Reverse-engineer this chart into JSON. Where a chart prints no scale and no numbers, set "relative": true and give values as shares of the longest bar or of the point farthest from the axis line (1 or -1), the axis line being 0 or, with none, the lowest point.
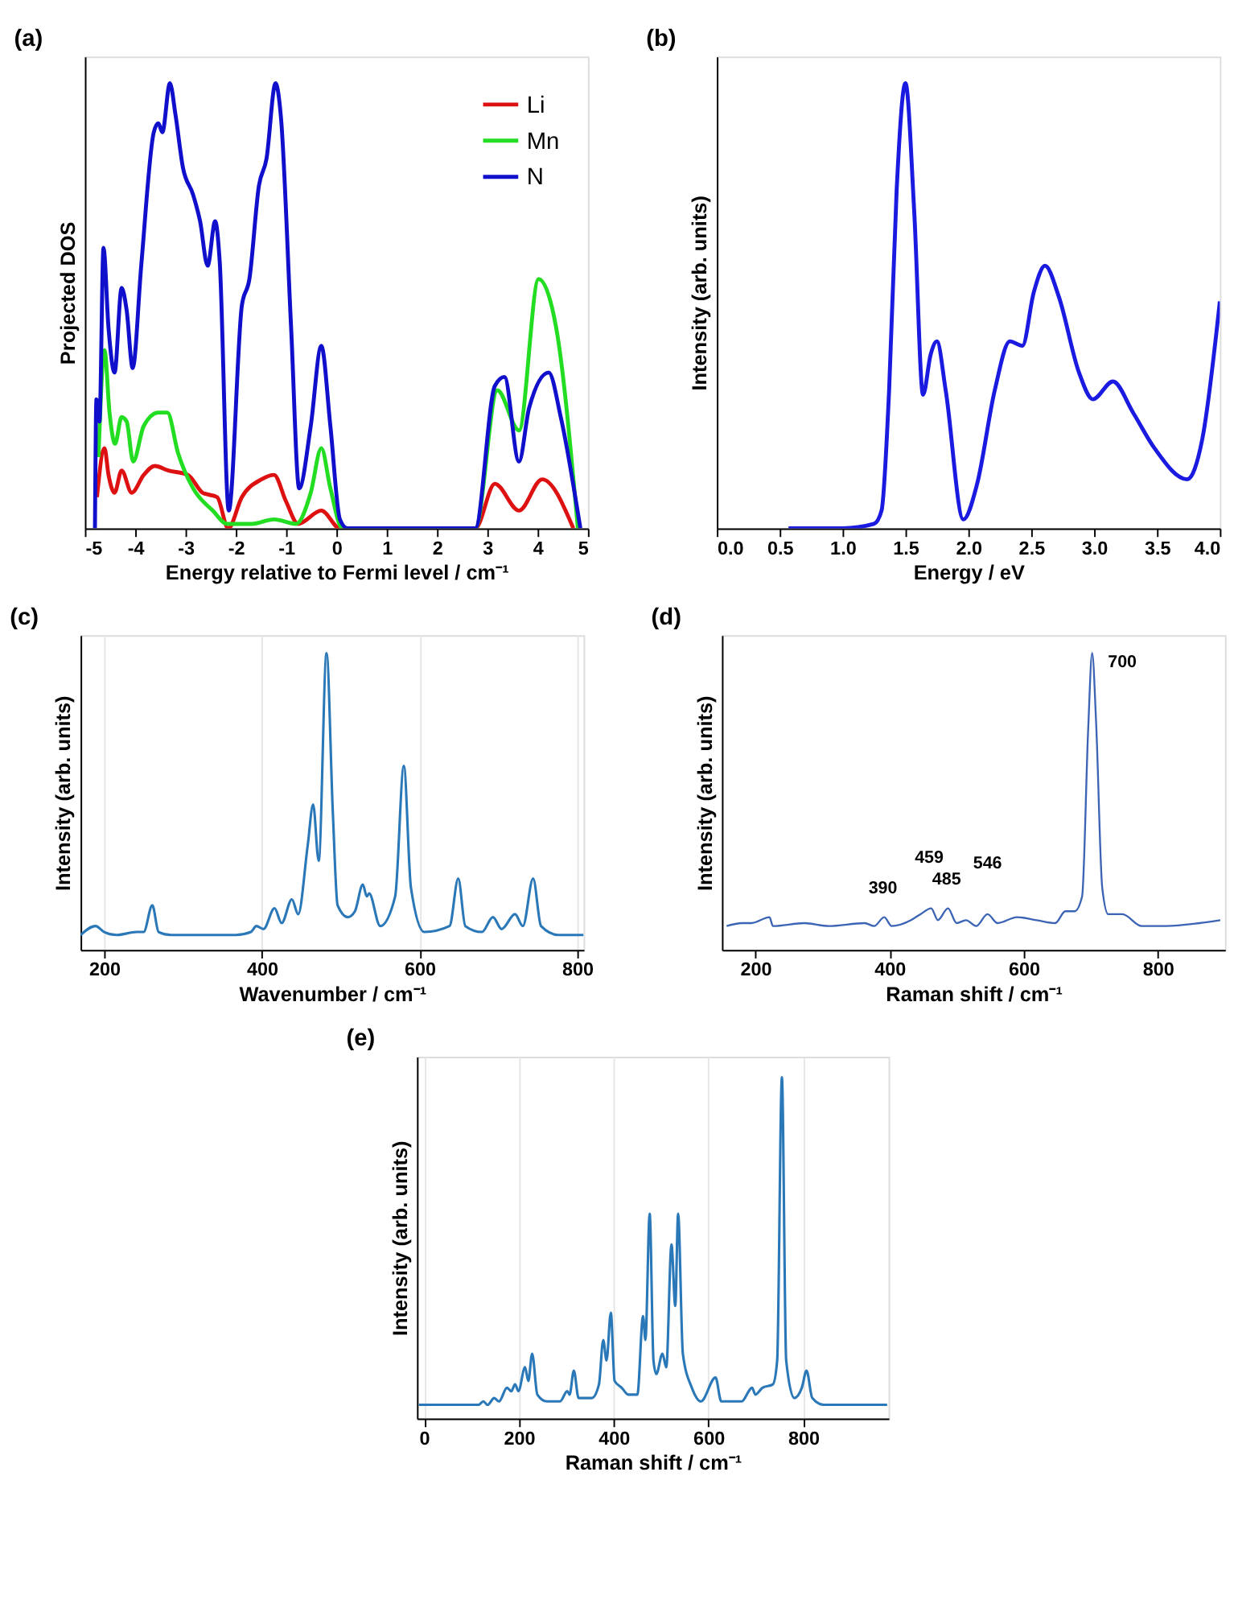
{
  "chart_data": [
    {
      "type": "line",
      "title": "(a)",
      "xlabel": "Energy relative to Fermi level / cm⁻¹",
      "ylabel": "Projected DOS",
      "relative": true,
      "tick_labels": "x",
      "grid": false,
      "legend": "top right",
      "xlim": [
        -5,
        5
      ],
      "xticks": [
        -5,
        -4,
        -3,
        -2,
        -1,
        0,
        1,
        2,
        3,
        4,
        5
      ],
      "series": [
        {
          "name": "Li",
          "color": "#dd1111",
          "x": [
            -4.76,
            -4.61,
            -4.53,
            -4.41,
            -4.27,
            -4.07,
            -3.83,
            -3.61,
            -3.34,
            -2.95,
            -2.66,
            -2.37,
            -2.15,
            -1.88,
            -1.49,
            -1.24,
            -1.0,
            -0.76,
            -0.3,
            0.07,
            2.76,
            3.15,
            3.63,
            4.09,
            4.71
          ],
          "values": [
            0.07,
            0.18,
            0.12,
            0.08,
            0.13,
            0.08,
            0.12,
            0.14,
            0.13,
            0.12,
            0.08,
            0.07,
            0,
            0.07,
            0.11,
            0.12,
            0.06,
            0.01,
            0.04,
            0,
            0,
            0.1,
            0.04,
            0.11,
            0
          ]
        },
        {
          "name": "Mn",
          "color": "#22dd22",
          "x": [
            -4.73,
            -4.61,
            -4.51,
            -4.4,
            -4.27,
            -4.17,
            -4.04,
            -3.83,
            -3.54,
            -3.36,
            -3.15,
            -2.85,
            -2.46,
            -2.17,
            -1.68,
            -1.24,
            -0.8,
            -0.51,
            -0.3,
            -0.12,
            0.12,
            2.76,
            3.2,
            3.63,
            4.02,
            4.37,
            4.8
          ],
          "values": [
            0.16,
            0.4,
            0.26,
            0.19,
            0.25,
            0.24,
            0.15,
            0.23,
            0.26,
            0.26,
            0.17,
            0.09,
            0.04,
            0.01,
            0.01,
            0.02,
            0.01,
            0.08,
            0.18,
            0.09,
            0,
            0,
            0.31,
            0.22,
            0.56,
            0.45,
            0
          ]
        },
        {
          "name": "N",
          "color": "#1010cc",
          "x": [
            -4.8,
            -4.77,
            -4.71,
            -4.63,
            -4.53,
            -4.41,
            -4.27,
            -4.17,
            -4.05,
            -3.88,
            -3.63,
            -3.54,
            -3.46,
            -3.31,
            -3.2,
            -3.05,
            -2.85,
            -2.71,
            -2.56,
            -2.41,
            -2.32,
            -2.14,
            -1.88,
            -1.73,
            -1.54,
            -1.39,
            -1.21,
            -1.1,
            -0.9,
            -0.74,
            -0.51,
            -0.3,
            -0.12,
            0.07,
            0.22,
            2.76,
            3.15,
            3.34,
            3.63,
            3.83,
            4.22,
            4.46,
            4.85
          ],
          "values": [
            0,
            0.29,
            0.24,
            0.63,
            0.45,
            0.35,
            0.54,
            0.49,
            0.36,
            0.59,
            0.89,
            0.91,
            0.89,
            1.0,
            0.93,
            0.81,
            0.75,
            0.69,
            0.59,
            0.69,
            0.6,
            0.04,
            0.5,
            0.56,
            0.77,
            0.83,
            1.0,
            0.92,
            0.45,
            0.09,
            0.23,
            0.41,
            0.23,
            0.02,
            0,
            0,
            0.32,
            0.34,
            0.15,
            0.27,
            0.35,
            0.25,
            0
          ]
        }
      ]
    },
    {
      "type": "line",
      "title": "(b)",
      "xlabel": "Energy / eV",
      "ylabel": "Intensity (arb. units)",
      "relative": true,
      "tick_labels": "x",
      "grid": false,
      "xlim": [
        0,
        4
      ],
      "xticks": [
        {
          "value": 0,
          "label": "0.0"
        },
        0.5,
        {
          "value": 1,
          "label": "1.0"
        },
        1.5,
        {
          "value": 2,
          "label": "2.0"
        },
        2.5,
        {
          "value": 3,
          "label": "3.0"
        },
        3.5,
        {
          "value": 4,
          "label": "4.0"
        }
      ],
      "series": [
        {
          "color": "#1a1ae0",
          "x": [
            0.57,
            1.0,
            1.25,
            1.31,
            1.37,
            1.43,
            1.5,
            1.57,
            1.64,
            1.7,
            1.75,
            1.82,
            1.96,
            2.07,
            2.21,
            2.33,
            2.43,
            2.52,
            2.61,
            2.72,
            2.88,
            2.99,
            3.15,
            3.31,
            3.48,
            3.74,
            3.86,
            4.0
          ],
          "values": [
            0,
            0,
            0.01,
            0.04,
            0.31,
            0.76,
            1.0,
            0.71,
            0.3,
            0.39,
            0.42,
            0.31,
            0.02,
            0.1,
            0.31,
            0.42,
            0.41,
            0.53,
            0.59,
            0.52,
            0.35,
            0.29,
            0.33,
            0.26,
            0.18,
            0.11,
            0.2,
            0.51
          ]
        }
      ]
    },
    {
      "type": "line",
      "title": "(c)",
      "xlabel": "Wavenumber / cm⁻¹",
      "ylabel": "Intensity (arb. units)",
      "relative": true,
      "tick_labels": "x",
      "grid": "x",
      "xlim": [
        170,
        808
      ],
      "xticks": [
        200,
        400,
        600,
        800
      ],
      "series": [
        {
          "color": "#2a78b8",
          "x": [
            170,
            189,
            200,
            216,
            241,
            250,
            261,
            269,
            285,
            367,
            386,
            393,
            402,
            416,
            425,
            438,
            446,
            458,
            465,
            472,
            482,
            490,
            496,
            509,
            518,
            528,
            533,
            536,
            550,
            569,
            580,
            589,
            606,
            638,
            649,
            658,
            679,
            693,
            704,
            721,
            731,
            744,
            754,
            776,
            808
          ],
          "values": [
            0.05,
            0.08,
            0.06,
            0.05,
            0.06,
            0.06,
            0.15,
            0.06,
            0.05,
            0.05,
            0.06,
            0.08,
            0.07,
            0.14,
            0.09,
            0.17,
            0.12,
            0.35,
            0.49,
            0.3,
            1.0,
            0.46,
            0.15,
            0.11,
            0.13,
            0.22,
            0.18,
            0.19,
            0.08,
            0.18,
            0.62,
            0.21,
            0.06,
            0.08,
            0.24,
            0.08,
            0.06,
            0.11,
            0.07,
            0.12,
            0.08,
            0.24,
            0.08,
            0.05,
            0.05
          ]
        }
      ]
    },
    {
      "type": "line",
      "title": "(d)",
      "xlabel": "Raman shift / cm⁻¹",
      "ylabel": "Intensity (arb. units)",
      "relative": true,
      "tick_labels": "x",
      "grid": false,
      "xlim": [
        150,
        900
      ],
      "xticks": [
        200,
        400,
        600,
        800
      ],
      "series": [
        {
          "color": "#3c64b4",
          "x": [
            157,
            180,
            194,
            221,
            226,
            273,
            309,
            363,
            377,
            392,
            403,
            432,
            446,
            462,
            472,
            487,
            500,
            514,
            529,
            546,
            561,
            590,
            619,
            647,
            662,
            676,
            687,
            696,
            702,
            708,
            717,
            726,
            747,
            776,
            812,
            862,
            893
          ],
          "values": [
            0.08,
            0.09,
            0.09,
            0.11,
            0.08,
            0.09,
            0.08,
            0.09,
            0.08,
            0.11,
            0.08,
            0.1,
            0.12,
            0.14,
            0.1,
            0.14,
            0.09,
            0.1,
            0.08,
            0.12,
            0.09,
            0.11,
            0.1,
            0.09,
            0.13,
            0.13,
            0.18,
            0.74,
            1.0,
            0.76,
            0.21,
            0.12,
            0.12,
            0.08,
            0.08,
            0.09,
            0.1
          ]
        }
      ],
      "annotations": [
        {
          "text": "390",
          "x": 390,
          "y": 0.11
        },
        {
          "text": "459",
          "x": 459,
          "y": 0.14
        },
        {
          "text": "485",
          "x": 485,
          "y": 0.14
        },
        {
          "text": "546",
          "x": 546,
          "y": 0.12
        },
        {
          "text": "700",
          "x": 702,
          "y": 1.0
        }
      ]
    },
    {
      "type": "line",
      "title": "(e)",
      "xlabel": "Raman shift / cm⁻¹",
      "ylabel": "Intensity (arb. units)",
      "relative": true,
      "tick_labels": "x",
      "grid": "x",
      "xlim": [
        -15,
        980
      ],
      "xticks": [
        0,
        200,
        400,
        600,
        800
      ],
      "series": [
        {
          "color": "#2a78b8",
          "x": [
            -11,
            115,
            125,
            134,
            148,
            158,
            175,
            184,
            192,
            199,
            213,
            220,
            228,
            239,
            259,
            287,
            302,
            307,
            316,
            326,
            354,
            369,
            378,
            385,
            394,
            402,
            417,
            431,
            450,
            462,
            467,
            476,
            484,
            490,
            503,
            511,
            522,
            530,
            536,
            546,
            565,
            584,
            615,
            627,
            670,
            692,
            699,
            714,
            736,
            745,
            755,
            764,
            781,
            797,
            807,
            819,
            843,
            977
          ],
          "values": [
            0.04,
            0.04,
            0.05,
            0.04,
            0.06,
            0.05,
            0.09,
            0.08,
            0.1,
            0.08,
            0.15,
            0.11,
            0.19,
            0.07,
            0.05,
            0.05,
            0.08,
            0.07,
            0.14,
            0.06,
            0.06,
            0.1,
            0.23,
            0.17,
            0.31,
            0.11,
            0.09,
            0.07,
            0.07,
            0.3,
            0.23,
            0.6,
            0.17,
            0.13,
            0.19,
            0.15,
            0.51,
            0.33,
            0.6,
            0.19,
            0.09,
            0.05,
            0.12,
            0.05,
            0.05,
            0.09,
            0.07,
            0.09,
            0.1,
            0.17,
            1.0,
            0.17,
            0.06,
            0.09,
            0.14,
            0.06,
            0.04,
            0.04
          ]
        }
      ]
    }
  ]
}
